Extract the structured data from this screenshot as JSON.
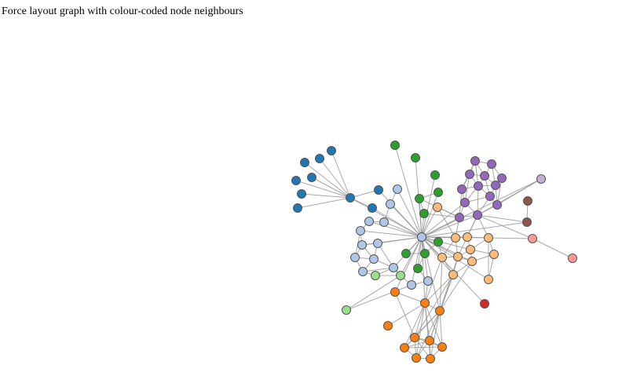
{
  "page": {
    "title": "Force layout graph with colour-coded node neighbours"
  },
  "graph": {
    "link_color": "#999999",
    "node_stroke": "#555555",
    "groups": {
      "dark-blue": "#1f77b4",
      "light-blue": "#aec7e8",
      "orange": "#ff7f0e",
      "light-orange": "#ffbb78",
      "green": "#2ca02c",
      "light-green": "#98df8a",
      "red": "#d62728",
      "pink": "#ff9896",
      "purple": "#9467bd",
      "lavender": "#c5b0d5",
      "brown": "#8c564b"
    }
  }
}
